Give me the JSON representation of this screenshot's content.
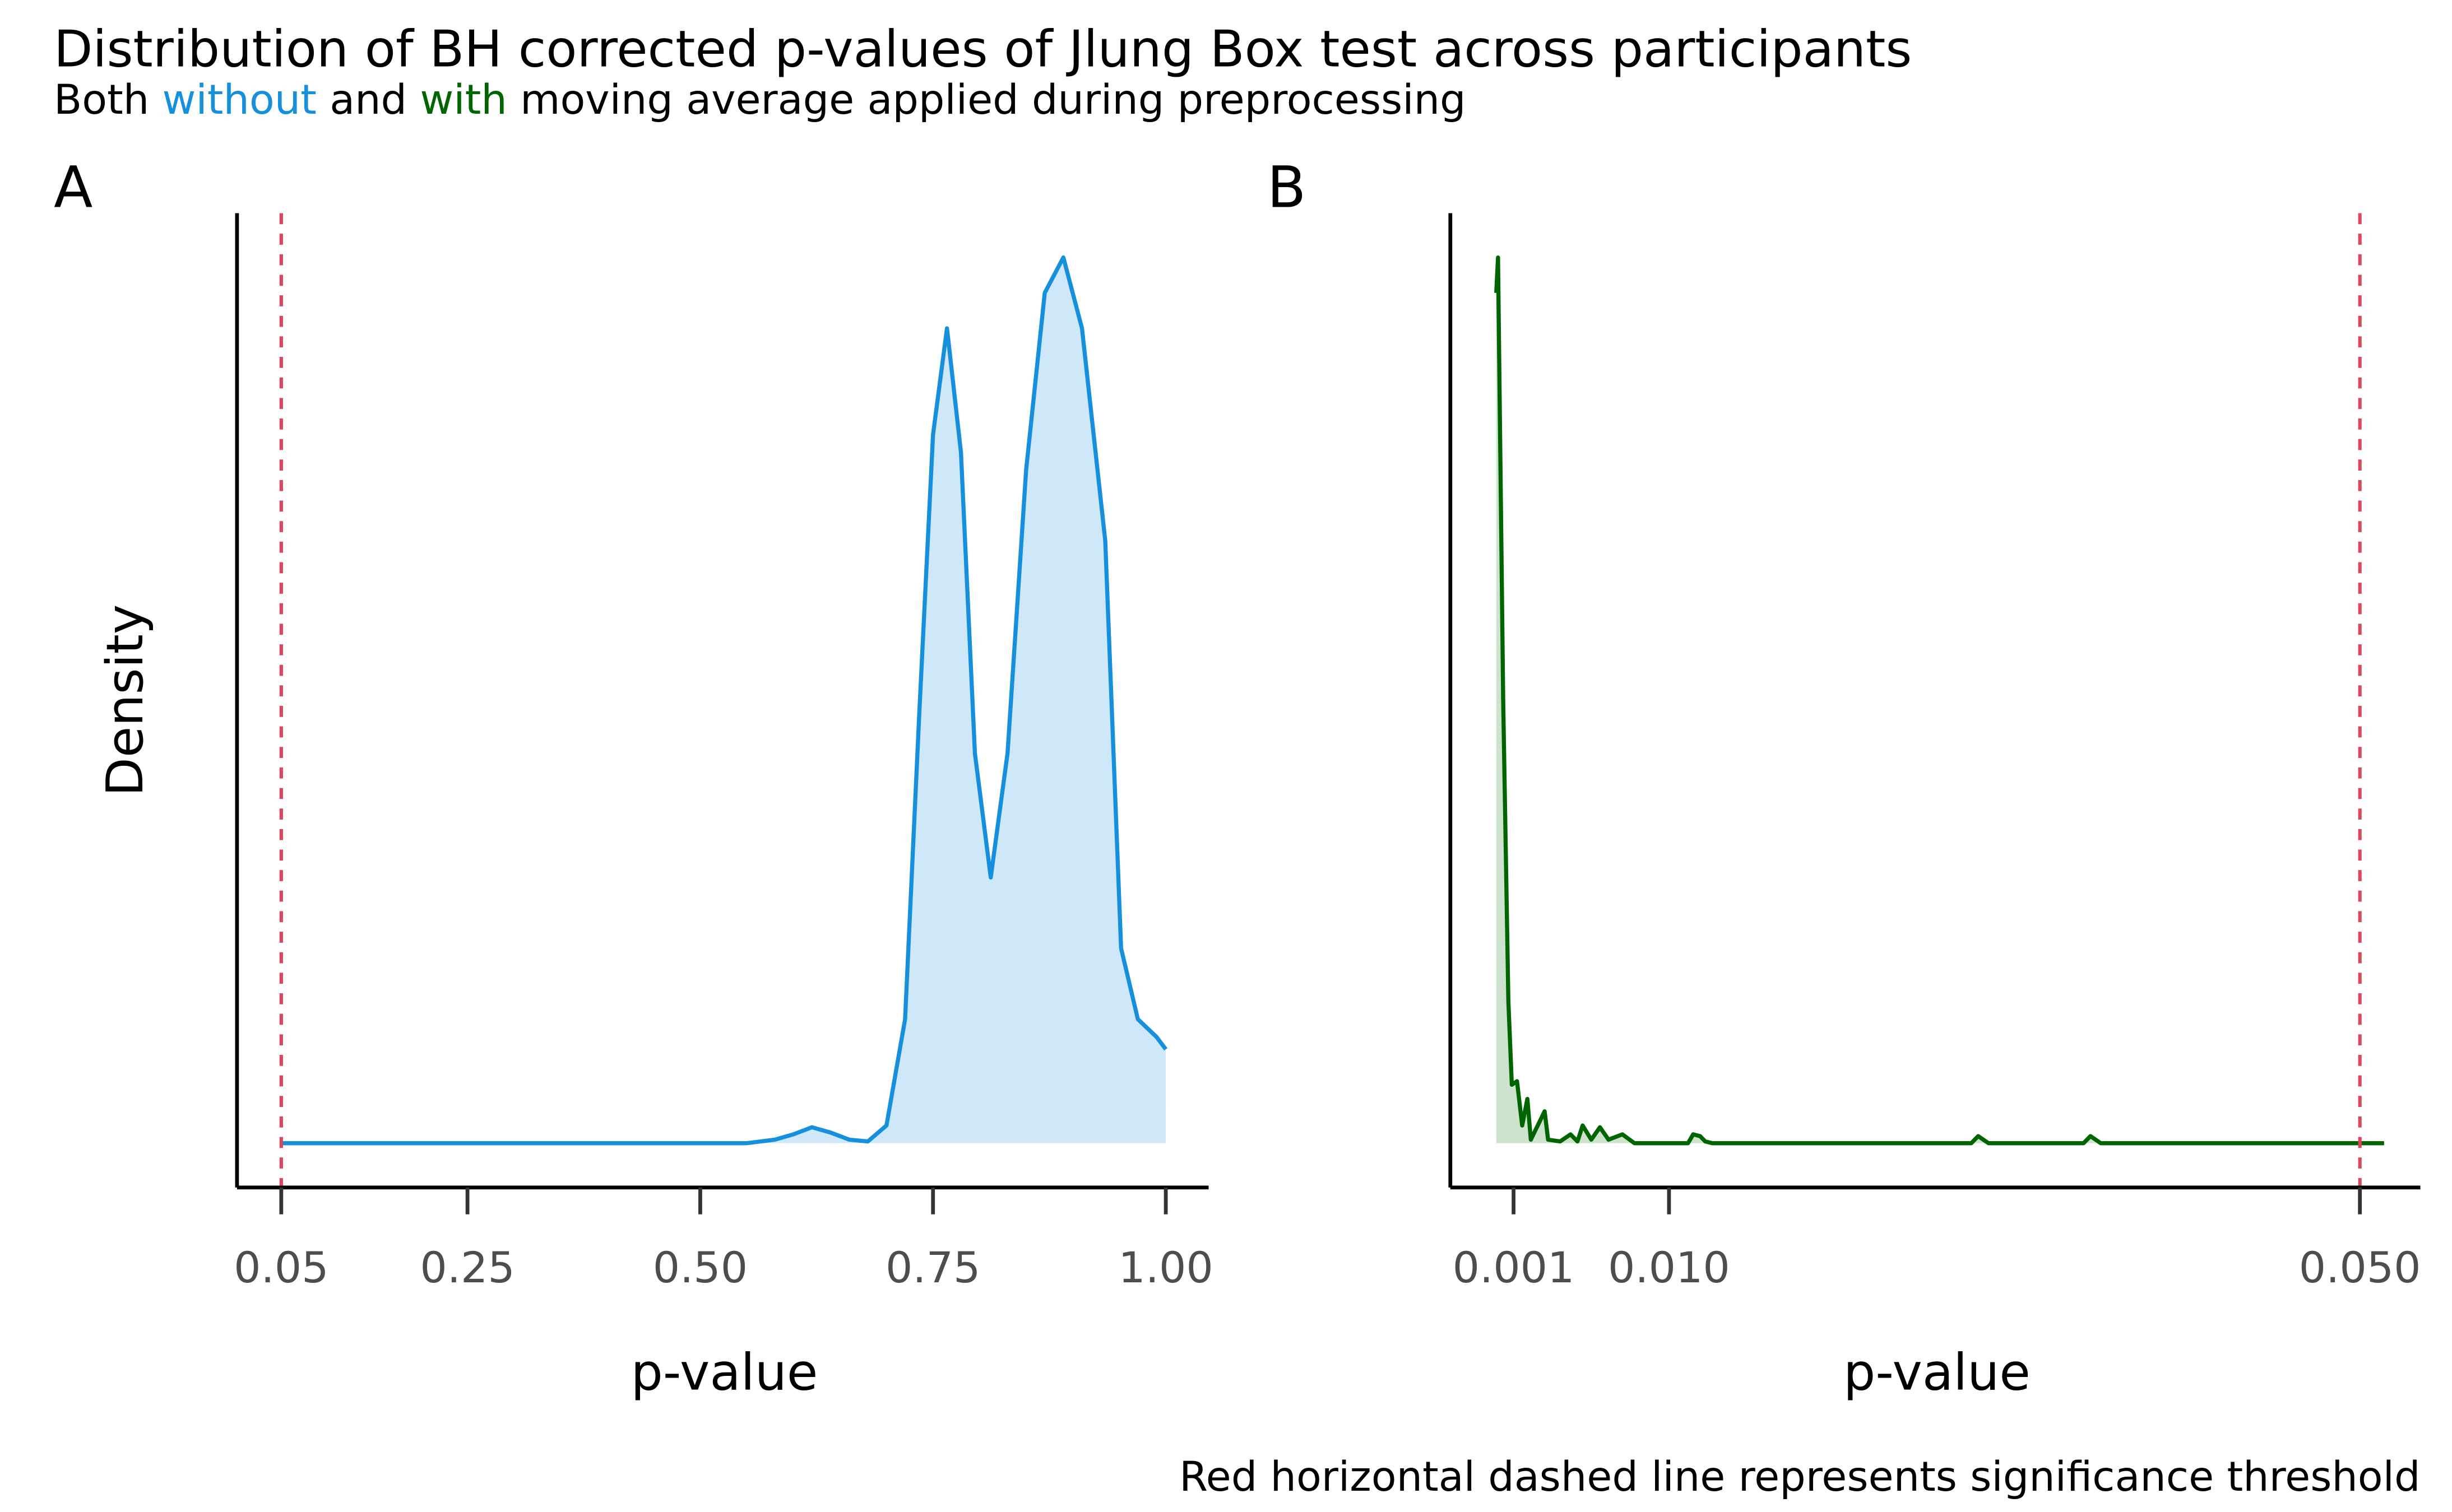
{
  "title": "Distribution of BH corrected p-values of Jlung Box test across participants",
  "subtitle": [
    {
      "text": "Both ",
      "color": "#000000"
    },
    {
      "text": "without",
      "color": "#168fdc"
    },
    {
      "text": " and ",
      "color": "#000000"
    },
    {
      "text": "with",
      "color": "#006400"
    },
    {
      "text": " moving average applied during preprocessing",
      "color": "#000000"
    }
  ],
  "caption": "Red horizontal dashed line represents significance threshold",
  "chart_data": [
    {
      "type": "density",
      "tag": "A",
      "x_label": "p-value",
      "y_label": "Density",
      "color": "#168fdc",
      "fill": "#cfe8f9",
      "threshold": 0.05,
      "threshold_color": "#d9485f",
      "xlim": [
        0.0025,
        1.046
      ],
      "ylim": [
        -0.25,
        5.25
      ],
      "xticks": [
        {
          "value": 0.05,
          "label": "0.05"
        },
        {
          "value": 0.25,
          "label": "0.25"
        },
        {
          "value": 0.5,
          "label": "0.50"
        },
        {
          "value": 0.75,
          "label": "0.75"
        },
        {
          "value": 1,
          "label": "1.00"
        }
      ],
      "x": [
        0.05,
        0.55,
        0.58,
        0.6,
        0.62,
        0.64,
        0.66,
        0.68,
        0.7,
        0.72,
        0.735,
        0.75,
        0.765,
        0.78,
        0.795,
        0.812,
        0.83,
        0.85,
        0.87,
        0.89,
        0.91,
        0.935,
        0.952,
        0.97,
        0.99,
        1.0
      ],
      "values": [
        0,
        0,
        0.02,
        0.05,
        0.09,
        0.06,
        0.02,
        0.01,
        0.1,
        0.7,
        2.4,
        4.0,
        4.6,
        3.9,
        2.2,
        1.5,
        2.2,
        3.8,
        4.8,
        5.0,
        4.6,
        3.4,
        1.1,
        0.7,
        0.6,
        0.53
      ]
    },
    {
      "type": "density",
      "tag": "B",
      "x_label": "p-value",
      "color": "#006400",
      "fill": "#cde3cd",
      "threshold": 0.05,
      "threshold_color": "#d9485f",
      "xlim": [
        -0.00266,
        0.0535
      ],
      "ylim": [
        -0.25,
        5.25
      ],
      "xticks": [
        {
          "value": 0.001,
          "label": "0.001"
        },
        {
          "value": 0.01,
          "label": "0.010"
        },
        {
          "value": 0.05,
          "label": "0.050"
        }
      ],
      "x": [
        0.0,
        0.0001,
        0.0004,
        0.0007,
        0.0009,
        0.0012,
        0.0015,
        0.0018,
        0.002,
        0.0028,
        0.003,
        0.0037,
        0.0043,
        0.0047,
        0.005,
        0.0055,
        0.006,
        0.0065,
        0.0073,
        0.008,
        0.0111,
        0.0114,
        0.0118,
        0.0121,
        0.0125,
        0.0275,
        0.0279,
        0.0285,
        0.034,
        0.0344,
        0.035,
        0.0514
      ],
      "values": [
        4.8,
        5.0,
        2.5,
        0.8,
        0.33,
        0.35,
        0.1,
        0.25,
        0.02,
        0.18,
        0.02,
        0.01,
        0.05,
        0.01,
        0.1,
        0.02,
        0.09,
        0.02,
        0.05,
        0,
        0,
        0.05,
        0.04,
        0.01,
        0,
        0,
        0.04,
        0,
        0,
        0.04,
        0,
        0
      ]
    }
  ]
}
